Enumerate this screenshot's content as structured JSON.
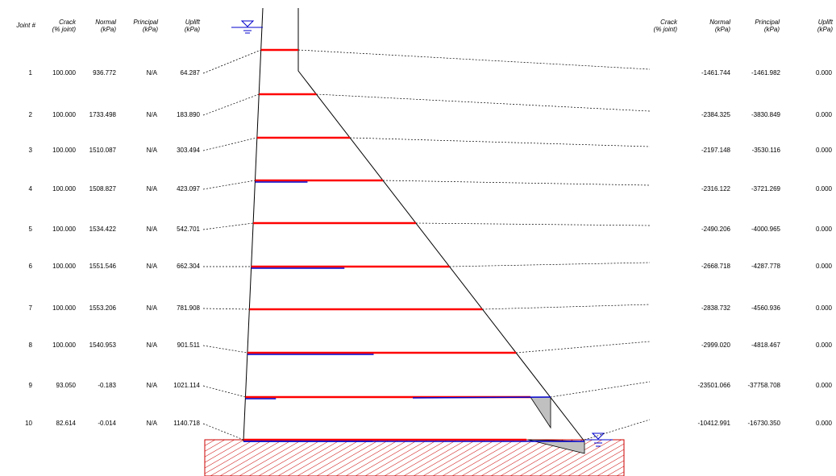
{
  "left_headers": {
    "joint": "Joint #",
    "crack": [
      "Crack",
      "(% joint)"
    ],
    "normal": [
      "Normal",
      "(kPa)"
    ],
    "principal": [
      "Principal",
      "(kPa)"
    ],
    "uplift": [
      "Uplift",
      "(kPa)"
    ]
  },
  "right_headers": {
    "crack": [
      "Crack",
      "(% joint)"
    ],
    "normal": [
      "Normal",
      "(kPa)"
    ],
    "principal": [
      "Principal",
      "(kPa)"
    ],
    "uplift": [
      "Uplift",
      "(kPa)"
    ]
  },
  "joints": [
    {
      "id": "1",
      "crack": "100.000",
      "normal": "936.772",
      "principal": "N/A",
      "uplift": "64.287",
      "r_normal": "-1461.744",
      "r_principal": "-1461.982",
      "r_uplift": "0.000"
    },
    {
      "id": "2",
      "crack": "100.000",
      "normal": "1733.498",
      "principal": "N/A",
      "uplift": "183.890",
      "r_normal": "-2384.325",
      "r_principal": "-3830.849",
      "r_uplift": "0.000"
    },
    {
      "id": "3",
      "crack": "100.000",
      "normal": "1510.087",
      "principal": "N/A",
      "uplift": "303.494",
      "r_normal": "-2197.148",
      "r_principal": "-3530.116",
      "r_uplift": "0.000"
    },
    {
      "id": "4",
      "crack": "100.000",
      "normal": "1508.827",
      "principal": "N/A",
      "uplift": "423.097",
      "r_normal": "-2316.122",
      "r_principal": "-3721.269",
      "r_uplift": "0.000"
    },
    {
      "id": "5",
      "crack": "100.000",
      "normal": "1534.422",
      "principal": "N/A",
      "uplift": "542.701",
      "r_normal": "-2490.206",
      "r_principal": "-4000.965",
      "r_uplift": "0.000"
    },
    {
      "id": "6",
      "crack": "100.000",
      "normal": "1551.546",
      "principal": "N/A",
      "uplift": "662.304",
      "r_normal": "-2668.718",
      "r_principal": "-4287.778",
      "r_uplift": "0.000"
    },
    {
      "id": "7",
      "crack": "100.000",
      "normal": "1553.206",
      "principal": "N/A",
      "uplift": "781.908",
      "r_normal": "-2838.732",
      "r_principal": "-4560.936",
      "r_uplift": "0.000"
    },
    {
      "id": "8",
      "crack": "100.000",
      "normal": "1540.953",
      "principal": "N/A",
      "uplift": "901.511",
      "r_normal": "-2999.020",
      "r_principal": "-4818.467",
      "r_uplift": "0.000"
    },
    {
      "id": "9",
      "crack": "93.050",
      "normal": "-0.183",
      "principal": "N/A",
      "uplift": "1021.114",
      "r_normal": "-23501.066",
      "r_principal": "-37758.708",
      "r_uplift": "0.000"
    },
    {
      "id": "10",
      "crack": "82.614",
      "normal": "-0.014",
      "principal": "N/A",
      "uplift": "1140.718",
      "r_normal": "-10412.991",
      "r_principal": "-16730.350",
      "r_uplift": "0.000"
    }
  ],
  "colors": {
    "crack_line": "#ff0000",
    "uplift_line": "#0000cc",
    "water_symbol": "#0000cc",
    "foundation_hatch": "#cc0000",
    "uplift_fill": "#c0c0c0"
  }
}
